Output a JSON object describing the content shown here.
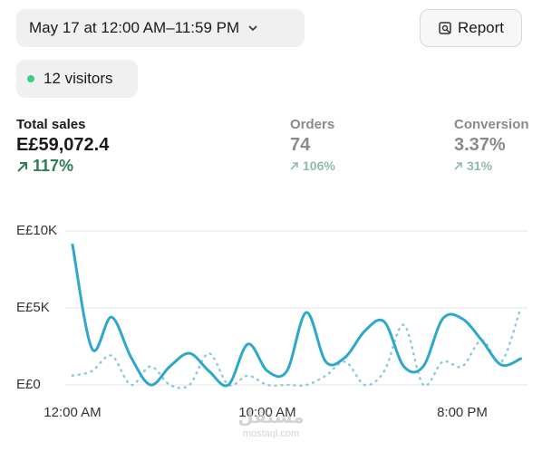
{
  "header": {
    "date_range": "May 17 at 12:00 AM–11:59 PM",
    "report_button": "Report",
    "visitors": "12 visitors"
  },
  "metrics": [
    {
      "label": "Total sales",
      "value": "E£59,072.4",
      "change": "117%"
    },
    {
      "label": "Orders",
      "value": "74",
      "change": "106%"
    },
    {
      "label": "Conversion",
      "value": "3.37%",
      "change": "31%"
    }
  ],
  "chart_data": {
    "type": "line",
    "x": [
      0,
      1,
      2,
      3,
      4,
      5,
      6,
      7,
      8,
      9,
      10,
      11,
      12,
      13,
      14,
      15,
      16,
      17,
      18,
      19,
      20,
      21,
      22,
      23
    ],
    "series": [
      {
        "color": "#2ea7cc",
        "style": "solid",
        "values": [
          9100,
          2350,
          4400,
          1800,
          0,
          1200,
          2050,
          900,
          0,
          2650,
          900,
          900,
          4700,
          1500,
          1800,
          3500,
          4100,
          1200,
          1200,
          4300,
          4300,
          2900,
          1300,
          1700
        ]
      },
      {
        "color": "#8ccbdd",
        "style": "dotted",
        "values": [
          600,
          900,
          1900,
          0,
          1200,
          0,
          0,
          2050,
          0,
          600,
          0,
          0,
          0,
          600,
          1500,
          0,
          900,
          3900,
          0,
          1500,
          1200,
          2900,
          1500,
          5000
        ]
      }
    ],
    "xlim": [
      0,
      23
    ],
    "xticks": [
      {
        "value": 0,
        "label": "12:00 AM"
      },
      {
        "value": 10,
        "label": "10:00 AM"
      },
      {
        "value": 20,
        "label": "8:00 PM"
      }
    ],
    "ylim": [
      0,
      10000
    ],
    "yticks": [
      {
        "value": 0,
        "label": "E£0"
      },
      {
        "value": 5000,
        "label": "E£5K"
      },
      {
        "value": 10000,
        "label": "E£10K"
      }
    ],
    "grid": true
  },
  "watermark": {
    "arabic": "مستقل",
    "latin": "mostaql.com"
  }
}
